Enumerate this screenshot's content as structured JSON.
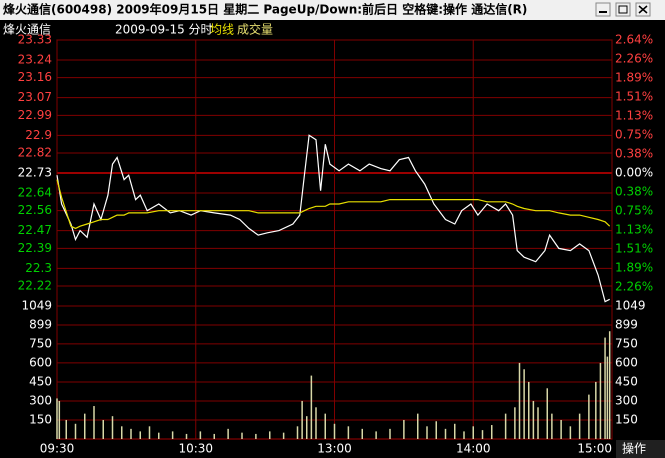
{
  "window": {
    "title": "烽火通信(600498)  2009年09月15日 星期二  PageUp/Down:前后日 空格键:操作 通达信(R)"
  },
  "footer_button": "操作",
  "chart_data": [
    {
      "type": "line",
      "title": "烽火通信",
      "subtitle": "2009-09-15 分时",
      "x": [
        0,
        2,
        6,
        8,
        10,
        13,
        16,
        19,
        22,
        24,
        26,
        29,
        31,
        34,
        36,
        39,
        44,
        49,
        53,
        58,
        62,
        68,
        75,
        79,
        83,
        87,
        91,
        96,
        102,
        105,
        107,
        109,
        112,
        114,
        116,
        118,
        122,
        126,
        131,
        135,
        140,
        144,
        148,
        152,
        155,
        159,
        163,
        168,
        172,
        175,
        179,
        182,
        186,
        191,
        194,
        197,
        199,
        202,
        207,
        211,
        213,
        217,
        222,
        226,
        230,
        234,
        237,
        239
      ],
      "series": [
        {
          "name": "烽火通信",
          "color": "#ffffff",
          "values": [
            22.72,
            22.59,
            22.5,
            22.43,
            22.47,
            22.44,
            22.59,
            22.52,
            22.63,
            22.77,
            22.8,
            22.7,
            22.72,
            22.61,
            22.63,
            22.56,
            22.59,
            22.55,
            22.56,
            22.54,
            22.56,
            22.55,
            22.54,
            22.52,
            22.48,
            22.45,
            22.46,
            22.47,
            22.5,
            22.54,
            22.72,
            22.9,
            22.88,
            22.65,
            22.86,
            22.77,
            22.74,
            22.77,
            22.74,
            22.77,
            22.75,
            22.74,
            22.79,
            22.8,
            22.74,
            22.68,
            22.59,
            22.52,
            22.5,
            22.56,
            22.59,
            22.54,
            22.59,
            22.56,
            22.59,
            22.54,
            22.38,
            22.35,
            22.33,
            22.38,
            22.45,
            22.39,
            22.38,
            22.41,
            22.38,
            22.27,
            22.15,
            22.16
          ]
        },
        {
          "name": "均线",
          "color": "#e8e000",
          "values": [
            22.7,
            22.62,
            22.49,
            22.48,
            22.49,
            22.5,
            22.51,
            22.52,
            22.52,
            22.53,
            22.54,
            22.54,
            22.55,
            22.55,
            22.55,
            22.55,
            22.56,
            22.56,
            22.56,
            22.56,
            22.56,
            22.56,
            22.56,
            22.56,
            22.56,
            22.55,
            22.55,
            22.55,
            22.55,
            22.55,
            22.56,
            22.57,
            22.58,
            22.58,
            22.58,
            22.59,
            22.59,
            22.6,
            22.6,
            22.6,
            22.6,
            22.61,
            22.61,
            22.61,
            22.61,
            22.61,
            22.61,
            22.61,
            22.61,
            22.61,
            22.61,
            22.61,
            22.6,
            22.6,
            22.6,
            22.59,
            22.58,
            22.57,
            22.56,
            22.56,
            22.56,
            22.55,
            22.54,
            22.54,
            22.53,
            22.52,
            22.51,
            22.49
          ]
        }
      ],
      "xlim": [
        0,
        240
      ],
      "ylim": [
        22.13,
        23.33
      ],
      "yticks": [
        23.33,
        23.24,
        23.16,
        23.07,
        22.99,
        22.9,
        22.82,
        22.73,
        22.64,
        22.56,
        22.47,
        22.39,
        22.3,
        22.22
      ],
      "y2lim": [
        -2.64,
        2.64
      ],
      "y2ticks": [
        {
          "value": 2.64,
          "label": "2.64%"
        },
        {
          "value": 2.26,
          "label": "2.26%"
        },
        {
          "value": 1.89,
          "label": "1.89%"
        },
        {
          "value": 1.51,
          "label": "1.51%"
        },
        {
          "value": 1.13,
          "label": "1.13%"
        },
        {
          "value": 0.75,
          "label": "0.75%"
        },
        {
          "value": 0.38,
          "label": "0.38%"
        },
        {
          "value": 0,
          "label": "0.00%"
        },
        {
          "value": -0.38,
          "label": "0.38%"
        },
        {
          "value": -0.75,
          "label": "0.75%"
        },
        {
          "value": -1.13,
          "label": "1.13%"
        },
        {
          "value": -1.51,
          "label": "1.51%"
        },
        {
          "value": -1.89,
          "label": "1.89%"
        },
        {
          "value": -2.26,
          "label": "2.26%"
        }
      ],
      "grid": true
    },
    {
      "type": "bar",
      "title": "成交量",
      "color": "#d8d8a8",
      "x": [
        0,
        1,
        4,
        8,
        12,
        16,
        20,
        24,
        28,
        32,
        36,
        40,
        44,
        50,
        56,
        62,
        68,
        74,
        80,
        86,
        92,
        98,
        104,
        106,
        108,
        110,
        112,
        116,
        120,
        126,
        132,
        138,
        144,
        150,
        156,
        160,
        164,
        168,
        172,
        176,
        180,
        184,
        188,
        194,
        198,
        200,
        202,
        204,
        206,
        208,
        212,
        214,
        218,
        222,
        226,
        230,
        233,
        235,
        237,
        238,
        239
      ],
      "values": [
        320,
        300,
        150,
        120,
        200,
        260,
        150,
        180,
        100,
        80,
        60,
        100,
        50,
        60,
        40,
        60,
        40,
        80,
        50,
        40,
        60,
        50,
        100,
        300,
        180,
        500,
        250,
        200,
        120,
        100,
        80,
        60,
        80,
        150,
        200,
        100,
        140,
        80,
        120,
        60,
        100,
        70,
        110,
        200,
        250,
        600,
        550,
        450,
        300,
        250,
        400,
        200,
        150,
        100,
        200,
        350,
        450,
        600,
        800,
        650,
        850
      ],
      "xlim": [
        0,
        240
      ],
      "xticks": [
        {
          "value": 0,
          "label": "09:30"
        },
        {
          "value": 60,
          "label": "10:30"
        },
        {
          "value": 120,
          "label": "13:00"
        },
        {
          "value": 180,
          "label": "14:00"
        },
        {
          "value": 240,
          "label": "15:00"
        }
      ],
      "ylim": [
        0,
        1049
      ],
      "yticks": [
        1049,
        899,
        750,
        600,
        450,
        300,
        150
      ],
      "grid": true
    }
  ]
}
